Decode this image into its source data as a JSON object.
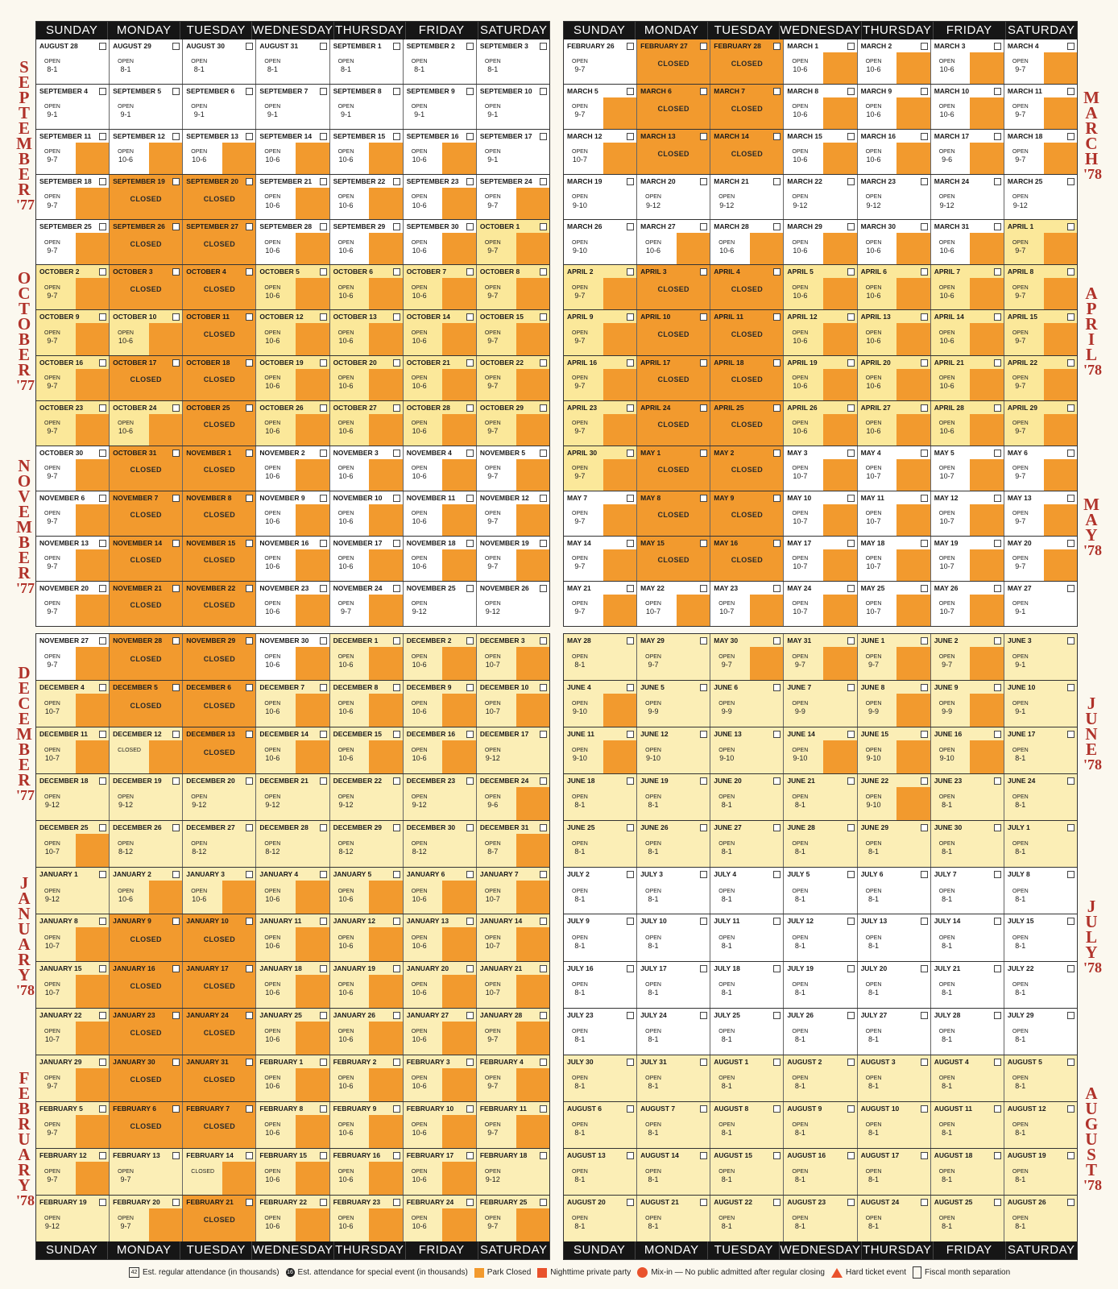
{
  "days": [
    "SUNDAY",
    "MONDAY",
    "TUESDAY",
    "WEDNESDAY",
    "THURSDAY",
    "FRIDAY",
    "SATURDAY"
  ],
  "months_left_top": [
    {
      "letters": "SEPTEMBER",
      "year": "'77"
    },
    {
      "letters": "OCTOBER",
      "year": "'77"
    },
    {
      "letters": "NOVEMBER",
      "year": "'77"
    }
  ],
  "months_left_bottom": [
    {
      "letters": "DECEMBER",
      "year": "'77"
    },
    {
      "letters": "JANUARY",
      "year": "'78"
    },
    {
      "letters": "FEBRUARY",
      "year": "'78"
    }
  ],
  "months_right_top": [
    {
      "letters": "MARCH",
      "year": "'78"
    },
    {
      "letters": "APRIL",
      "year": "'78"
    },
    {
      "letters": "MAY",
      "year": "'78"
    }
  ],
  "months_right_bottom": [
    {
      "letters": "JUNE",
      "year": "'78"
    },
    {
      "letters": "JULY",
      "year": "'78"
    },
    {
      "letters": "AUGUST",
      "year": "'78"
    }
  ],
  "q1": [
    [
      "AUGUST 28|o|OPEN|8-1",
      "AUGUST 29|o|OPEN|8-1",
      "AUGUST 30|o|OPEN|8-1",
      "AUGUST 31|o|OPEN|8-1",
      "SEPTEMBER 1|o|OPEN|8-1",
      "SEPTEMBER 2|o|OPEN|8-1",
      "SEPTEMBER 3|o|OPEN|8-1"
    ],
    [
      "SEPTEMBER 4|o|OPEN|9-1",
      "SEPTEMBER 5|o|OPEN|9-1",
      "SEPTEMBER 6|o|OPEN|9-1",
      "SEPTEMBER 7|o|OPEN|9-1",
      "SEPTEMBER 8|o|OPEN|9-1",
      "SEPTEMBER 9|o|OPEN|9-1",
      "SEPTEMBER 10|o|OPEN|9-1"
    ],
    [
      "SEPTEMBER 11|of|OPEN|9-7",
      "SEPTEMBER 12|of|OPEN|10-6",
      "SEPTEMBER 13|of|OPEN|10-6",
      "SEPTEMBER 14|of|OPEN|10-6",
      "SEPTEMBER 15|of|OPEN|10-6",
      "SEPTEMBER 16|of|OPEN|10-6",
      "SEPTEMBER 17|o|OPEN|9-1"
    ],
    [
      "SEPTEMBER 18|of|OPEN|9-7",
      "SEPTEMBER 19|c|CLOSED|",
      "SEPTEMBER 20|c|CLOSED|",
      "SEPTEMBER 21|of|OPEN|10-6",
      "SEPTEMBER 22|of|OPEN|10-6",
      "SEPTEMBER 23|of|OPEN|10-6",
      "SEPTEMBER 24|of|OPEN|9-7"
    ],
    [
      "SEPTEMBER 25|of|OPEN|9-7",
      "SEPTEMBER 26|c|CLOSED|",
      "SEPTEMBER 27|c|CLOSED|",
      "SEPTEMBER 28|of|OPEN|10-6",
      "SEPTEMBER 29|of|OPEN|10-6",
      "SEPTEMBER 30|of|OPEN|10-6",
      "OCTOBER 1|yf|OPEN|9-7"
    ],
    [
      "OCTOBER 2|yf|OPEN|9-7",
      "OCTOBER 3|c|CLOSED|",
      "OCTOBER 4|c|CLOSED|",
      "OCTOBER 5|yf|OPEN|10-6",
      "OCTOBER 6|yf|OPEN|10-6",
      "OCTOBER 7|yf|OPEN|10-6",
      "OCTOBER 8|yf|OPEN|9-7"
    ],
    [
      "OCTOBER 9|yf|OPEN|9-7",
      "OCTOBER 10|yf|OPEN|10-6",
      "OCTOBER 11|c|CLOSED|",
      "OCTOBER 12|yf|OPEN|10-6",
      "OCTOBER 13|yf|OPEN|10-6",
      "OCTOBER 14|yf|OPEN|10-6",
      "OCTOBER 15|yf|OPEN|9-7"
    ],
    [
      "OCTOBER 16|yf|OPEN|9-7",
      "OCTOBER 17|c|CLOSED|",
      "OCTOBER 18|c|CLOSED|",
      "OCTOBER 19|yf|OPEN|10-6",
      "OCTOBER 20|yf|OPEN|10-6",
      "OCTOBER 21|yf|OPEN|10-6",
      "OCTOBER 22|yf|OPEN|9-7"
    ],
    [
      "OCTOBER 23|yf|OPEN|9-7",
      "OCTOBER 24|yf|OPEN|10-6",
      "OCTOBER 25|c|CLOSED|",
      "OCTOBER 26|yf|OPEN|10-6",
      "OCTOBER 27|yf|OPEN|10-6",
      "OCTOBER 28|yf|OPEN|10-6",
      "OCTOBER 29|yf|OPEN|9-7"
    ],
    [
      "OCTOBER 30|of|OPEN|9-7",
      "OCTOBER 31|c|CLOSED|",
      "NOVEMBER 1|c|CLOSED|",
      "NOVEMBER 2|of|OPEN|10-6",
      "NOVEMBER 3|of|OPEN|10-6",
      "NOVEMBER 4|of|OPEN|10-6",
      "NOVEMBER 5|of|OPEN|9-7"
    ],
    [
      "NOVEMBER 6|of|OPEN|9-7",
      "NOVEMBER 7|c|CLOSED|",
      "NOVEMBER 8|c|CLOSED|",
      "NOVEMBER 9|of|OPEN|10-6",
      "NOVEMBER 10|of|OPEN|10-6",
      "NOVEMBER 11|of|OPEN|10-6",
      "NOVEMBER 12|of|OPEN|9-7"
    ],
    [
      "NOVEMBER 13|of|OPEN|9-7",
      "NOVEMBER 14|c|CLOSED|",
      "NOVEMBER 15|c|CLOSED|",
      "NOVEMBER 16|of|OPEN|10-6",
      "NOVEMBER 17|of|OPEN|10-6",
      "NOVEMBER 18|of|OPEN|10-6",
      "NOVEMBER 19|of|OPEN|9-7"
    ],
    [
      "NOVEMBER 20|of|OPEN|9-7",
      "NOVEMBER 21|c|CLOSED|",
      "NOVEMBER 22|c|CLOSED|",
      "NOVEMBER 23|of|OPEN|10-6",
      "NOVEMBER 24|of|OPEN|9-7",
      "NOVEMBER 25|o|OPEN|9-12",
      "NOVEMBER 26|o|OPEN|9-12"
    ]
  ],
  "q2": [
    [
      "FEBRUARY 26|o|OPEN|9-7",
      "FEBRUARY 27|c|CLOSED|",
      "FEBRUARY 28|c|CLOSED|",
      "MARCH 1|of|OPEN|10-6",
      "MARCH 2|of|OPEN|10-6",
      "MARCH 3|of|OPEN|10-6",
      "MARCH 4|of|OPEN|9-7"
    ],
    [
      "MARCH 5|of|OPEN|9-7",
      "MARCH 6|c|CLOSED|",
      "MARCH 7|c|CLOSED|",
      "MARCH 8|of|OPEN|10-6",
      "MARCH 9|of|OPEN|10-6",
      "MARCH 10|of|OPEN|10-6",
      "MARCH 11|of|OPEN|9-7"
    ],
    [
      "MARCH 12|of|OPEN|10-7",
      "MARCH 13|c|CLOSED|",
      "MARCH 14|c|CLOSED|",
      "MARCH 15|of|OPEN|10-6",
      "MARCH 16|of|OPEN|10-6",
      "MARCH 17|of|OPEN|9-6",
      "MARCH 18|of|OPEN|9-7"
    ],
    [
      "MARCH 19|o|OPEN|9-10",
      "MARCH 20|o|OPEN|9-12",
      "MARCH 21|o|OPEN|9-12",
      "MARCH 22|o|OPEN|9-12",
      "MARCH 23|o|OPEN|9-12",
      "MARCH 24|o|OPEN|9-12",
      "MARCH 25|o|OPEN|9-12"
    ],
    [
      "MARCH 26|o|OPEN|9-10",
      "MARCH 27|of|OPEN|10-6",
      "MARCH 28|of|OPEN|10-6",
      "MARCH 29|of|OPEN|10-6",
      "MARCH 30|of|OPEN|10-6",
      "MARCH 31|of|OPEN|10-6",
      "APRIL 1|yf|OPEN|9-7"
    ],
    [
      "APRIL 2|yf|OPEN|9-7",
      "APRIL 3|c|CLOSED|",
      "APRIL 4|c|CLOSED|",
      "APRIL 5|yf|OPEN|10-6",
      "APRIL 6|yf|OPEN|10-6",
      "APRIL 7|yf|OPEN|10-6",
      "APRIL 8|yf|OPEN|9-7"
    ],
    [
      "APRIL 9|yf|OPEN|9-7",
      "APRIL 10|c|CLOSED|",
      "APRIL 11|c|CLOSED|",
      "APRIL 12|yf|OPEN|10-6",
      "APRIL 13|yf|OPEN|10-6",
      "APRIL 14|yf|OPEN|10-6",
      "APRIL 15|yf|OPEN|9-7"
    ],
    [
      "APRIL 16|yf|OPEN|9-7",
      "APRIL 17|c|CLOSED|",
      "APRIL 18|c|CLOSED|",
      "APRIL 19|yf|OPEN|10-6",
      "APRIL 20|yf|OPEN|10-6",
      "APRIL 21|yf|OPEN|10-6",
      "APRIL 22|yf|OPEN|9-7"
    ],
    [
      "APRIL 23|yf|OPEN|9-7",
      "APRIL 24|c|CLOSED|",
      "APRIL 25|c|CLOSED|",
      "APRIL 26|yf|OPEN|10-6",
      "APRIL 27|yf|OPEN|10-6",
      "APRIL 28|yf|OPEN|10-6",
      "APRIL 29|yf|OPEN|9-7"
    ],
    [
      "APRIL 30|yf|OPEN|9-7",
      "MAY 1|c|CLOSED|",
      "MAY 2|c|CLOSED|",
      "MAY 3|of|OPEN|10-7",
      "MAY 4|of|OPEN|10-7",
      "MAY 5|of|OPEN|10-7",
      "MAY 6|of|OPEN|9-7"
    ],
    [
      "MAY 7|of|OPEN|9-7",
      "MAY 8|c|CLOSED|",
      "MAY 9|c|CLOSED|",
      "MAY 10|of|OPEN|10-7",
      "MAY 11|of|OPEN|10-7",
      "MAY 12|of|OPEN|10-7",
      "MAY 13|of|OPEN|9-7"
    ],
    [
      "MAY 14|of|OPEN|9-7",
      "MAY 15|c|CLOSED|",
      "MAY 16|c|CLOSED|",
      "MAY 17|of|OPEN|10-7",
      "MAY 18|of|OPEN|10-7",
      "MAY 19|of|OPEN|10-7",
      "MAY 20|of|OPEN|9-7"
    ],
    [
      "MAY 21|of|OPEN|9-7",
      "MAY 22|of|OPEN|10-7",
      "MAY 23|of|OPEN|10-7",
      "MAY 24|of|OPEN|10-7",
      "MAY 25|of|OPEN|10-7",
      "MAY 26|of|OPEN|10-7",
      "MAY 27|o|OPEN|9-1"
    ]
  ],
  "q3": [
    [
      "NOVEMBER 27|of|OPEN|9-7",
      "NOVEMBER 28|c|CLOSED|",
      "NOVEMBER 29|c|CLOSED|",
      "NOVEMBER 30|of|OPEN|10-6",
      "DECEMBER 1|pf|OPEN|10-6",
      "DECEMBER 2|pf|OPEN|10-6",
      "DECEMBER 3|pf|OPEN|10-7"
    ],
    [
      "DECEMBER 4|pf|OPEN|10-7",
      "DECEMBER 5|c|CLOSED|",
      "DECEMBER 6|c|CLOSED|",
      "DECEMBER 7|pf|OPEN|10-6",
      "DECEMBER 8|pf|OPEN|10-6",
      "DECEMBER 9|pf|OPEN|10-6",
      "DECEMBER 10|pf|OPEN|10-7"
    ],
    [
      "DECEMBER 11|pf|OPEN|10-7",
      "DECEMBER 12|pf|CLOSED|",
      "DECEMBER 13|c|CLOSED|",
      "DECEMBER 14|pf|OPEN|10-6",
      "DECEMBER 15|pf|OPEN|10-6",
      "DECEMBER 16|pf|OPEN|10-6",
      "DECEMBER 17|p|OPEN|9-12"
    ],
    [
      "DECEMBER 18|p|OPEN|9-12",
      "DECEMBER 19|p|OPEN|9-12",
      "DECEMBER 20|p|OPEN|9-12",
      "DECEMBER 21|p|OPEN|9-12",
      "DECEMBER 22|p|OPEN|9-12",
      "DECEMBER 23|p|OPEN|9-12",
      "DECEMBER 24|pf|OPEN|9-6"
    ],
    [
      "DECEMBER 25|pf|OPEN|10-7",
      "DECEMBER 26|p|OPEN|8-12",
      "DECEMBER 27|p|OPEN|8-12",
      "DECEMBER 28|p|OPEN|8-12",
      "DECEMBER 29|p|OPEN|8-12",
      "DECEMBER 30|p|OPEN|8-12",
      "DECEMBER 31|pf|OPEN|8-7"
    ],
    [
      "JANUARY 1|p|OPEN|9-12",
      "JANUARY 2|pf|OPEN|10-6",
      "JANUARY 3|pf|OPEN|10-6",
      "JANUARY 4|pf|OPEN|10-6",
      "JANUARY 5|pf|OPEN|10-6",
      "JANUARY 6|pf|OPEN|10-6",
      "JANUARY 7|pf|OPEN|10-7"
    ],
    [
      "JANUARY 8|pf|OPEN|10-7",
      "JANUARY 9|c|CLOSED|",
      "JANUARY 10|c|CLOSED|",
      "JANUARY 11|pf|OPEN|10-6",
      "JANUARY 12|pf|OPEN|10-6",
      "JANUARY 13|pf|OPEN|10-6",
      "JANUARY 14|pf|OPEN|10-7"
    ],
    [
      "JANUARY 15|pf|OPEN|10-7",
      "JANUARY 16|c|CLOSED|",
      "JANUARY 17|c|CLOSED|",
      "JANUARY 18|pf|OPEN|10-6",
      "JANUARY 19|pf|OPEN|10-6",
      "JANUARY 20|pf|OPEN|10-6",
      "JANUARY 21|pf|OPEN|10-7"
    ],
    [
      "JANUARY 22|pf|OPEN|10-7",
      "JANUARY 23|c|CLOSED|",
      "JANUARY 24|c|CLOSED|",
      "JANUARY 25|pf|OPEN|10-6",
      "JANUARY 26|pf|OPEN|10-6",
      "JANUARY 27|pf|OPEN|10-6",
      "JANUARY 28|pf|OPEN|9-7"
    ],
    [
      "JANUARY 29|pf|OPEN|9-7",
      "JANUARY 30|c|CLOSED|",
      "JANUARY 31|c|CLOSED|",
      "FEBRUARY 1|pf|OPEN|10-6",
      "FEBRUARY 2|pf|OPEN|10-6",
      "FEBRUARY 3|pf|OPEN|10-6",
      "FEBRUARY 4|pf|OPEN|9-7"
    ],
    [
      "FEBRUARY 5|pf|OPEN|9-7",
      "FEBRUARY 6|c|CLOSED|",
      "FEBRUARY 7|c|CLOSED|",
      "FEBRUARY 8|pf|OPEN|10-6",
      "FEBRUARY 9|pf|OPEN|10-6",
      "FEBRUARY 10|pf|OPEN|10-6",
      "FEBRUARY 11|pf|OPEN|9-7"
    ],
    [
      "FEBRUARY 12|pf|OPEN|9-7",
      "FEBRUARY 13|p|OPEN|9-7",
      "FEBRUARY 14|pf|CLOSED|",
      "FEBRUARY 15|pf|OPEN|10-6",
      "FEBRUARY 16|pf|OPEN|10-6",
      "FEBRUARY 17|pf|OPEN|10-6",
      "FEBRUARY 18|p|OPEN|9-12"
    ],
    [
      "FEBRUARY 19|p|OPEN|9-12",
      "FEBRUARY 20|pf|OPEN|9-7",
      "FEBRUARY 21|c|CLOSED|",
      "FEBRUARY 22|pf|OPEN|10-6",
      "FEBRUARY 23|pf|OPEN|10-6",
      "FEBRUARY 24|pf|OPEN|10-6",
      "FEBRUARY 25|pf|OPEN|9-7"
    ]
  ],
  "q4": [
    [
      "MAY 28|p|OPEN|8-1",
      "MAY 29|p|OPEN|9-7",
      "MAY 30|pf|OPEN|9-7",
      "MAY 31|pf|OPEN|9-7",
      "JUNE 1|pf|OPEN|9-7",
      "JUNE 2|pf|OPEN|9-7",
      "JUNE 3|p|OPEN|9-1"
    ],
    [
      "JUNE 4|pf|OPEN|9-10",
      "JUNE 5|p|OPEN|9-9",
      "JUNE 6|p|OPEN|9-9",
      "JUNE 7|p|OPEN|9-9",
      "JUNE 8|pf|OPEN|9-9",
      "JUNE 9|pf|OPEN|9-9",
      "JUNE 10|p|OPEN|9-1"
    ],
    [
      "JUNE 11|pf|OPEN|9-10",
      "JUNE 12|p|OPEN|9-10",
      "JUNE 13|p|OPEN|9-10",
      "JUNE 14|pf|OPEN|9-10",
      "JUNE 15|pf|OPEN|9-10",
      "JUNE 16|pf|OPEN|9-10",
      "JUNE 17|p|OPEN|8-1"
    ],
    [
      "JUNE 18|p|OPEN|8-1",
      "JUNE 19|p|OPEN|8-1",
      "JUNE 20|p|OPEN|8-1",
      "JUNE 21|p|OPEN|8-1",
      "JUNE 22|pf|OPEN|9-10",
      "JUNE 23|p|OPEN|8-1",
      "JUNE 24|p|OPEN|8-1"
    ],
    [
      "JUNE 25|p|OPEN|8-1",
      "JUNE 26|p|OPEN|8-1",
      "JUNE 27|p|OPEN|8-1",
      "JUNE 28|p|OPEN|8-1",
      "JUNE 29|p|OPEN|8-1",
      "JUNE 30|p|OPEN|8-1",
      "JULY 1|p|OPEN|8-1"
    ],
    [
      "JULY 2|o|OPEN|8-1",
      "JULY 3|o|OPEN|8-1",
      "JULY 4|o|OPEN|8-1",
      "JULY 5|o|OPEN|8-1",
      "JULY 6|o|OPEN|8-1",
      "JULY 7|o|OPEN|8-1",
      "JULY 8|o|OPEN|8-1"
    ],
    [
      "JULY 9|o|OPEN|8-1",
      "JULY 10|o|OPEN|8-1",
      "JULY 11|o|OPEN|8-1",
      "JULY 12|o|OPEN|8-1",
      "JULY 13|o|OPEN|8-1",
      "JULY 14|o|OPEN|8-1",
      "JULY 15|o|OPEN|8-1"
    ],
    [
      "JULY 16|o|OPEN|8-1",
      "JULY 17|o|OPEN|8-1",
      "JULY 18|o|OPEN|8-1",
      "JULY 19|o|OPEN|8-1",
      "JULY 20|o|OPEN|8-1",
      "JULY 21|o|OPEN|8-1",
      "JULY 22|o|OPEN|8-1"
    ],
    [
      "JULY 23|o|OPEN|8-1",
      "JULY 24|o|OPEN|8-1",
      "JULY 25|o|OPEN|8-1",
      "JULY 26|o|OPEN|8-1",
      "JULY 27|o|OPEN|8-1",
      "JULY 28|o|OPEN|8-1",
      "JULY 29|o|OPEN|8-1"
    ],
    [
      "JULY 30|p|OPEN|8-1",
      "JULY 31|p|OPEN|8-1",
      "AUGUST 1|p|OPEN|8-1",
      "AUGUST 2|p|OPEN|8-1",
      "AUGUST 3|p|OPEN|8-1",
      "AUGUST 4|p|OPEN|8-1",
      "AUGUST 5|p|OPEN|8-1"
    ],
    [
      "AUGUST 6|p|OPEN|8-1",
      "AUGUST 7|p|OPEN|8-1",
      "AUGUST 8|p|OPEN|8-1",
      "AUGUST 9|p|OPEN|8-1",
      "AUGUST 10|p|OPEN|8-1",
      "AUGUST 11|p|OPEN|8-1",
      "AUGUST 12|p|OPEN|8-1"
    ],
    [
      "AUGUST 13|p|OPEN|8-1",
      "AUGUST 14|p|OPEN|8-1",
      "AUGUST 15|p|OPEN|8-1",
      "AUGUST 16|p|OPEN|8-1",
      "AUGUST 17|p|OPEN|8-1",
      "AUGUST 18|p|OPEN|8-1",
      "AUGUST 19|p|OPEN|8-1"
    ],
    [
      "AUGUST 20|p|OPEN|8-1",
      "AUGUST 21|p|OPEN|8-1",
      "AUGUST 22|p|OPEN|8-1",
      "AUGUST 23|p|OPEN|8-1",
      "AUGUST 24|p|OPEN|8-1",
      "AUGUST 25|p|OPEN|8-1",
      "AUGUST 26|p|OPEN|8-1"
    ]
  ],
  "legend": {
    "regular": "Est. regular attendance (in thousands)",
    "regular_num": "42",
    "special": "Est. attendance for special event (in thousands)",
    "special_num": "16",
    "closed": "Park Closed",
    "nighttime": "Nighttime private party",
    "mixin": "Mix-in — No public admitted after regular closing",
    "hard": "Hard ticket event",
    "fiscal": "Fiscal month separation"
  },
  "colors": {
    "closed": "#f29a2e",
    "party": "#e9522c",
    "yellow": "#fbe89a",
    "pale": "#fbeeb6",
    "bar": "#161616"
  }
}
